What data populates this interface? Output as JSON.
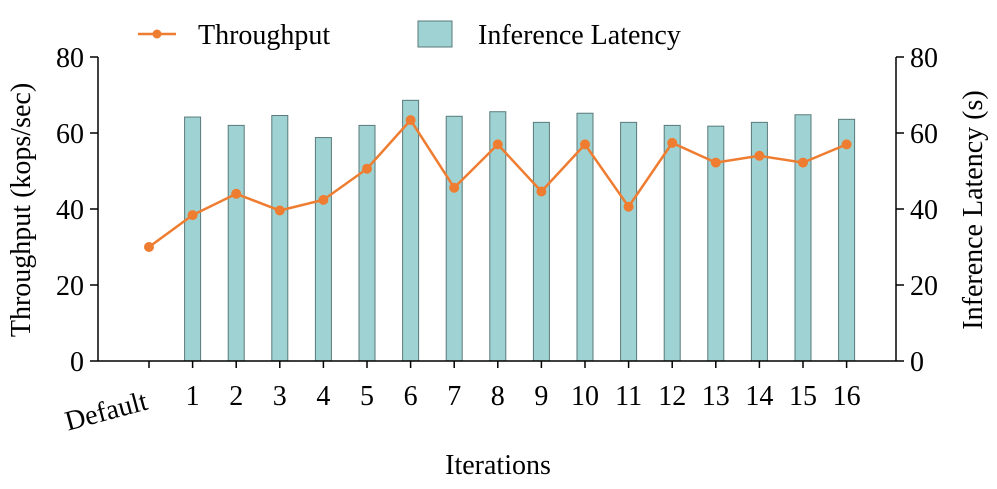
{
  "chart_data": {
    "type": "bar+line",
    "categories": [
      "Default",
      "1",
      "2",
      "3",
      "4",
      "5",
      "6",
      "7",
      "8",
      "9",
      "10",
      "11",
      "12",
      "13",
      "14",
      "15",
      "16"
    ],
    "series": [
      {
        "name": "Inference Latency",
        "kind": "bar",
        "axis": "right",
        "color": "#9fd3d3",
        "values": [
          null,
          64.2,
          62.0,
          64.6,
          58.8,
          62.0,
          68.6,
          64.4,
          65.6,
          62.8,
          65.2,
          62.8,
          62.0,
          61.8,
          62.8,
          64.8,
          63.6
        ]
      },
      {
        "name": "Throughput",
        "kind": "line",
        "axis": "left",
        "color": "#ee7d31",
        "values": [
          30.0,
          38.4,
          44.0,
          39.6,
          42.4,
          50.6,
          63.4,
          45.6,
          57.0,
          44.6,
          57.0,
          40.6,
          57.4,
          52.2,
          54.0,
          52.2,
          57.0
        ]
      }
    ],
    "xlabel": "Iterations",
    "ylabel": "Throughput (kops/sec)",
    "ylabel_right": "Inference Latency (s)",
    "ylim": [
      0,
      80
    ],
    "ylim_right": [
      0,
      80
    ],
    "yticks": [
      0,
      20,
      40,
      60,
      80
    ],
    "legend": {
      "placement": "top",
      "entries": [
        "Throughput",
        "Inference Latency"
      ]
    },
    "grid": false
  }
}
